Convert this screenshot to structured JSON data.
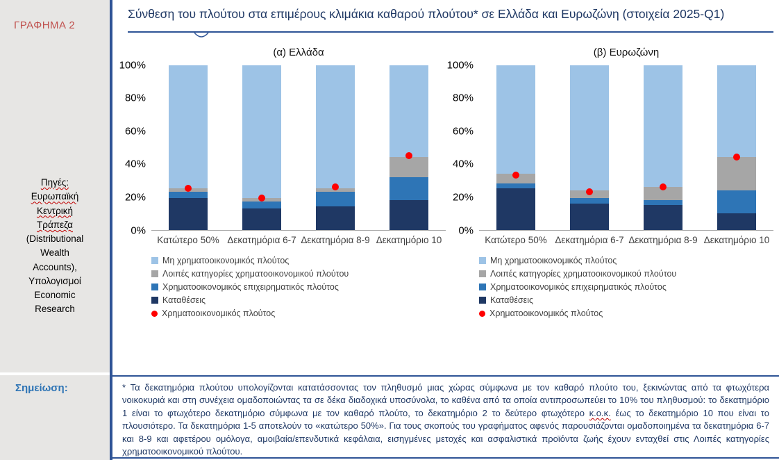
{
  "sidebar": {
    "chart_label": "ΓΡΑΦΗΜΑ 2",
    "sources": {
      "lines": [
        {
          "text": "Πηγές:",
          "wavy": true
        },
        {
          "text": "Ευρωπαϊκή",
          "wavy": true
        },
        {
          "text": "Κεντρική",
          "wavy": true
        },
        {
          "text": "Τράπεζα",
          "wavy": true
        },
        {
          "text": "(Distributional",
          "wavy": false
        },
        {
          "text": "Wealth",
          "wavy": false
        },
        {
          "text": "Accounts),",
          "wavy": false
        },
        {
          "text": "Υπολογισμοί",
          "wavy": false
        },
        {
          "text": "Economic",
          "wavy": false
        },
        {
          "text": "Research",
          "wavy": false
        }
      ]
    },
    "note_label": "Σημείωση:"
  },
  "header": {
    "title": "Σύνθεση του πλούτου στα επιμέρους κλιμάκια καθαρού πλούτου* σε Ελλάδα και Ευρωζώνη (στοιχεία 2025-Q1)"
  },
  "colors": {
    "non_financial": "#9DC3E6",
    "other_financial": "#A6A6A6",
    "business": "#2E75B6",
    "deposits": "#1F3864",
    "financial_dot": "#FF0000",
    "accent_blue": "#2F5496",
    "label_red": "#C0504D"
  },
  "chart_data": [
    {
      "type": "bar",
      "stacked": true,
      "title": "(α) Ελλάδα",
      "categories": [
        "Κατώτερο 50%",
        "Δεκατημόρια 6-7",
        "Δεκατημόρια 8-9",
        "Δεκατημόριο 10"
      ],
      "series": [
        {
          "name": "Καταθέσεις",
          "color": "#1F3864",
          "values": [
            19,
            13,
            14,
            18
          ]
        },
        {
          "name": "Χρηματοοικονομικός επιχειρηματικός πλούτος",
          "color": "#2E75B6",
          "values": [
            4,
            4,
            9,
            14
          ]
        },
        {
          "name": "Λοιπές κατηγορίες χρηματοοικονομικού πλούτου",
          "color": "#A6A6A6",
          "values": [
            2,
            2,
            2,
            12
          ]
        },
        {
          "name": "Μη χρηματοοικονομικός πλούτος",
          "color": "#9DC3E6",
          "values": [
            75,
            81,
            75,
            56
          ]
        }
      ],
      "point_series": {
        "name": "Χρηματοοικονομικός πλούτος",
        "color": "#FF0000",
        "shape": "circle",
        "values": [
          25,
          19,
          26,
          45
        ]
      },
      "ylim": [
        0,
        100
      ],
      "yticks": [
        0,
        20,
        40,
        60,
        80,
        100
      ],
      "y_format": "percent",
      "legend": [
        {
          "label": "Μη χρηματοοικονομικός πλούτος",
          "color": "#9DC3E6",
          "shape": "square",
          "icon": "legend-swatch-non-financial"
        },
        {
          "label": "Λοιπές κατηγορίες χρηματοοικονομικού πλούτου",
          "color": "#A6A6A6",
          "shape": "square",
          "icon": "legend-swatch-other-financial"
        },
        {
          "label": "Χρηματοοικονομικός επιχειρηματικός πλούτος",
          "color": "#2E75B6",
          "shape": "square",
          "icon": "legend-swatch-business"
        },
        {
          "label": "Καταθέσεις",
          "color": "#1F3864",
          "shape": "square",
          "icon": "legend-swatch-deposits"
        },
        {
          "label": "Χρηματοοικονομικός πλούτος",
          "color": "#FF0000",
          "shape": "circle",
          "icon": "legend-dot-financial-wealth"
        }
      ]
    },
    {
      "type": "bar",
      "stacked": true,
      "title": "(β) Ευρωζώνη",
      "categories": [
        "Κατώτερο 50%",
        "Δεκατημόρια 6-7",
        "Δεκατημόρια 8-9",
        "Δεκατημόριο 10"
      ],
      "series": [
        {
          "name": "Καταθέσεις",
          "color": "#1F3864",
          "values": [
            25,
            16,
            15,
            10
          ]
        },
        {
          "name": "Χρηματοοικονομικός επιχειρηματικός πλούτος",
          "color": "#2E75B6",
          "values": [
            3,
            3,
            3,
            14
          ]
        },
        {
          "name": "Λοιπές κατηγορίες χρηματοοικονομικού πλούτου",
          "color": "#A6A6A6",
          "values": [
            6,
            5,
            8,
            20
          ]
        },
        {
          "name": "Μη χρηματοοικονομικός πλούτος",
          "color": "#9DC3E6",
          "values": [
            66,
            76,
            74,
            56
          ]
        }
      ],
      "point_series": {
        "name": "Χρηματοοικονομικός πλούτος",
        "color": "#FF0000",
        "shape": "circle",
        "values": [
          33,
          23,
          26,
          44
        ]
      },
      "ylim": [
        0,
        100
      ],
      "yticks": [
        0,
        20,
        40,
        60,
        80,
        100
      ],
      "y_format": "percent",
      "legend": [
        {
          "label": "Μη χρηματοοικονομικός πλούτος",
          "color": "#9DC3E6",
          "shape": "square",
          "icon": "legend-swatch-non-financial"
        },
        {
          "label": "Λοιπές κατηγορίες χρηματοοικονομικού πλούτου",
          "color": "#A6A6A6",
          "shape": "square",
          "icon": "legend-swatch-other-financial"
        },
        {
          "label": "Χρηματοοικονομικός επιχειρηματικός πλούτος",
          "color": "#2E75B6",
          "shape": "square",
          "icon": "legend-swatch-business"
        },
        {
          "label": "Καταθέσεις",
          "color": "#1F3864",
          "shape": "square",
          "icon": "legend-swatch-deposits"
        },
        {
          "label": "Χρηματοοικονομικός πλούτος",
          "color": "#FF0000",
          "shape": "circle",
          "icon": "legend-dot-financial-wealth"
        }
      ]
    }
  ],
  "note": {
    "part1": "* Τα δεκατημόρια πλούτου υπολογίζονται κατατάσσοντας τον πληθυσμό μιας χώρας σύμφωνα με τον καθαρό πλούτο του, ξεκινώντας από τα φτωχότερα νοικοκυριά και στη συνέχεια ομαδοποιώντας τα σε δέκα διαδοχικά υποσύνολα, το καθένα από τα οποία αντιπροσωπεύει το 10% του πληθυσμού: το δεκατημόριο 1 είναι το φτωχότερο δεκατημόριο σύμφωνα με τον καθαρό πλούτο, το δεκατημόριο 2 το δεύτερο φτωχότερο ",
    "wavy": "κ.ο.κ.",
    "part2": " έως το δεκατημόριο 10 που είναι το πλουσιότερο. Τα δεκατημόρια  1-5 αποτελούν το «κατώτερο 50%». Για τους σκοπούς του γραφήματος αφενός παρουσιάζονται ομαδοποιημένα τα δεκατημόρια 6-7 και 8-9 και αφετέρου ομόλογα, αμοιβαία/επενδυτικά κεφάλαια, εισηγμένες μετοχές και ασφαλιστικά προϊόντα ζωής έχουν ενταχθεί στις Λοιπές κατηγορίες χρηματοοικονομικού πλούτου."
  }
}
